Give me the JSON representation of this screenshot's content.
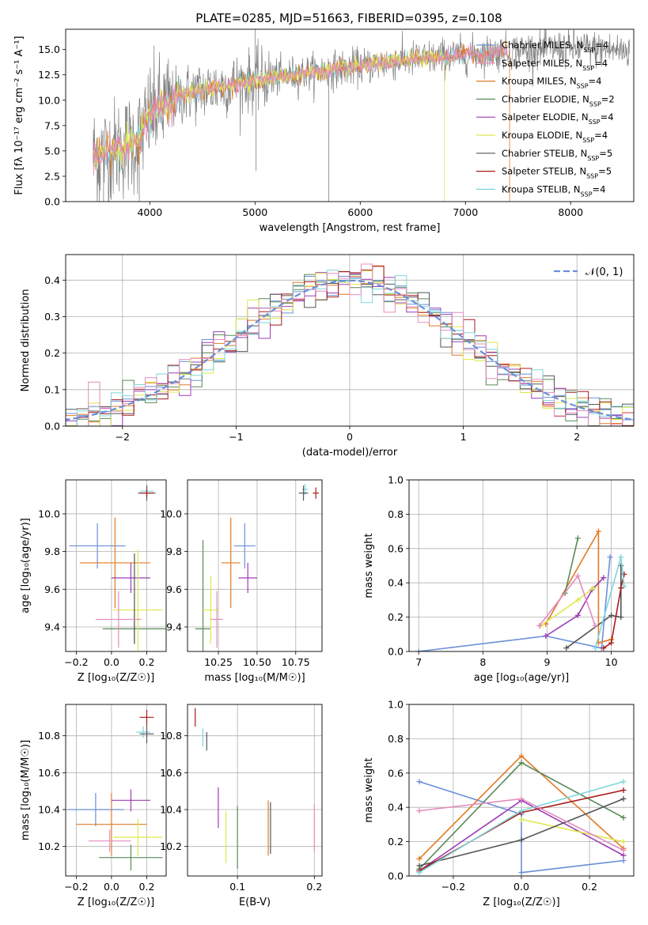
{
  "figure_title": "PLATE=0285, MJD=51663, FIBERID=0395, z=0.108",
  "series_colors": [
    "#6a8fd8",
    "#e07b25",
    "#5a8a5a",
    "#9b3db5",
    "#dde84a",
    "#555555",
    "#a81c1c",
    "#7fd6dc",
    "#e38cbf"
  ],
  "chart_data": [
    {
      "id": "spectrum",
      "type": "line",
      "xlabel": "wavelength [Angstrom, rest frame]",
      "ylabel": "Flux [fλ 10⁻¹⁷ erg cm⁻² s⁻¹ A⁻¹]",
      "xlim": [
        3200,
        8600
      ],
      "ylim": [
        0,
        17
      ],
      "xticks": [
        "4000",
        "5000",
        "6000",
        "7000",
        "8000"
      ],
      "yticks": [
        "0.0",
        "2.5",
        "5.0",
        "7.5",
        "10.0",
        "12.5",
        "15.0"
      ],
      "grid": false,
      "legend_position": "top-right",
      "data_points": [
        [
          3500,
          4.6
        ],
        [
          3600,
          4.9
        ],
        [
          3700,
          5.2
        ],
        [
          3800,
          5.6
        ],
        [
          3900,
          6.2
        ],
        [
          4000,
          8.6
        ],
        [
          4100,
          9.3
        ],
        [
          4200,
          9.9
        ],
        [
          4300,
          10.5
        ],
        [
          4500,
          11.0
        ],
        [
          4700,
          11.4
        ],
        [
          4900,
          11.8
        ],
        [
          5100,
          12.1
        ],
        [
          5300,
          12.4
        ],
        [
          5500,
          12.7
        ],
        [
          5700,
          13.0
        ],
        [
          5900,
          13.2
        ],
        [
          6100,
          13.5
        ],
        [
          6300,
          13.8
        ],
        [
          6500,
          14.0
        ],
        [
          6700,
          14.2
        ],
        [
          6900,
          14.4
        ],
        [
          7100,
          14.6
        ],
        [
          7300,
          14.7
        ],
        [
          7500,
          14.9
        ],
        [
          7700,
          15.0
        ],
        [
          7900,
          15.1
        ],
        [
          8100,
          15.1
        ],
        [
          8300,
          15.0
        ],
        [
          8500,
          14.9
        ]
      ],
      "legend": [
        {
          "label": "Chabrier MILES, N_SSP=4",
          "color": "#6a8fd8"
        },
        {
          "label": "Salpeter MILES, N_SSP=4",
          "color": "#e38cbf"
        },
        {
          "label": "Kroupa MILES, N_SSP=4",
          "color": "#e07b25"
        },
        {
          "label": "Chabrier ELODIE, N_SSP=2",
          "color": "#5a8a5a"
        },
        {
          "label": "Salpeter ELODIE, N_SSP=4",
          "color": "#9b3db5"
        },
        {
          "label": "Kroupa ELODIE, N_SSP=4",
          "color": "#dde84a"
        },
        {
          "label": "Chabrier STELIB, N_SSP=5",
          "color": "#555555"
        },
        {
          "label": "Salpeter STELIB, N_SSP=5",
          "color": "#a81c1c"
        },
        {
          "label": "Kroupa STELIB, N_SSP=4",
          "color": "#7fd6dc"
        }
      ]
    },
    {
      "id": "residuals",
      "type": "line",
      "xlabel": "(data-model)/error",
      "ylabel": "Normed distribution",
      "xlim": [
        -2.5,
        2.5
      ],
      "ylim": [
        0,
        0.47
      ],
      "xticks": [
        "−2",
        "−1",
        "0",
        "1",
        "2"
      ],
      "yticks": [
        "0.0",
        "0.1",
        "0.2",
        "0.3",
        "0.4"
      ],
      "grid": true,
      "legend_position": "top-right",
      "legend": [
        {
          "label": "𝒩(0, 1)",
          "color": "#6a8fd8",
          "style": "dashed"
        }
      ],
      "gaussian": {
        "mean": 0,
        "sigma": 1
      },
      "histogram_bin_width": 0.1
    },
    {
      "id": "age_vs_Z",
      "type": "scatter",
      "xlabel": "Z [log₁₀(Z/Z☉)]",
      "ylabel": "age  [log₁₀(age/yr)]",
      "xlim": [
        -0.26,
        0.31
      ],
      "ylim": [
        9.27,
        10.18
      ],
      "xticks": [
        {
          "v": -0.2,
          "t": "−0.2"
        },
        {
          "v": 0.0,
          "t": "0.0"
        },
        {
          "v": 0.2,
          "t": "0.2"
        }
      ],
      "yticks": [
        {
          "v": 9.4,
          "t": "9.4"
        },
        {
          "v": 9.6,
          "t": "9.6"
        },
        {
          "v": 9.8,
          "t": "9.8"
        },
        {
          "v": 10.0,
          "t": "10.0"
        }
      ],
      "grid": true,
      "points": [
        {
          "x": -0.08,
          "y": 9.83,
          "xerr": 0.16,
          "yerr": 0.12,
          "color": "#6a8fd8"
        },
        {
          "x": 0.02,
          "y": 9.74,
          "xerr": 0.2,
          "yerr": 0.24,
          "color": "#e07b25"
        },
        {
          "x": 0.13,
          "y": 9.39,
          "xerr": 0.18,
          "yerr": 0.08,
          "color": "#5a8a5a"
        },
        {
          "x": 0.11,
          "y": 9.66,
          "xerr": 0.11,
          "yerr": 0.08,
          "color": "#9b3db5"
        },
        {
          "x": 0.15,
          "y": 9.49,
          "xerr": 0.14,
          "yerr": 0.32,
          "color": "#dde84a"
        },
        {
          "x": 0.13,
          "y": 9.55,
          "xerr": 0.0,
          "yerr": 0.24,
          "color": "#555555"
        },
        {
          "x": 0.04,
          "y": 9.44,
          "xerr": 0.13,
          "yerr": 0.15,
          "color": "#e38cbf"
        },
        {
          "x": 0.2,
          "y": 10.12,
          "xerr": 0.04,
          "yerr": 0.03,
          "color": "#7fd6dc"
        },
        {
          "x": 0.2,
          "y": 10.11,
          "xerr": 0.05,
          "yerr": 0.04,
          "color": "#555555"
        },
        {
          "x": 0.2,
          "y": 10.11,
          "xerr": 0.04,
          "yerr": 0.02,
          "color": "#a81c1c"
        }
      ]
    },
    {
      "id": "age_vs_mass",
      "type": "scatter",
      "xlabel": "mass [log₁₀(M/M☉)]",
      "ylabel": "",
      "xlim": [
        10.05,
        10.92
      ],
      "ylim": [
        9.27,
        10.18
      ],
      "xticks": [
        {
          "v": 10.25,
          "t": "10.25"
        },
        {
          "v": 10.5,
          "t": "10.50"
        },
        {
          "v": 10.75,
          "t": "10.75"
        }
      ],
      "yticks": [
        {
          "v": 9.4,
          "t": "9.4"
        },
        {
          "v": 9.6,
          "t": "9.6"
        },
        {
          "v": 9.8,
          "t": "9.8"
        },
        {
          "v": 10.0,
          "t": "10.0"
        }
      ],
      "grid": true,
      "points": [
        {
          "x": 10.42,
          "y": 9.83,
          "xerr": 0.07,
          "yerr": 0.12,
          "color": "#6a8fd8"
        },
        {
          "x": 10.33,
          "y": 9.74,
          "xerr": 0.06,
          "yerr": 0.24,
          "color": "#e07b25"
        },
        {
          "x": 10.15,
          "y": 9.39,
          "xerr": 0.05,
          "yerr": 0.47,
          "color": "#5a8a5a"
        },
        {
          "x": 10.44,
          "y": 9.66,
          "xerr": 0.06,
          "yerr": 0.08,
          "color": "#9b3db5"
        },
        {
          "x": 10.2,
          "y": 9.49,
          "xerr": 0.05,
          "yerr": 0.18,
          "color": "#dde84a"
        },
        {
          "x": 10.24,
          "y": 9.44,
          "xerr": 0.04,
          "yerr": 0.15,
          "color": "#e38cbf"
        },
        {
          "x": 10.81,
          "y": 10.13,
          "xerr": 0.02,
          "yerr": 0.03,
          "color": "#7fd6dc"
        },
        {
          "x": 10.8,
          "y": 10.11,
          "xerr": 0.03,
          "yerr": 0.04,
          "color": "#555555"
        },
        {
          "x": 10.88,
          "y": 10.11,
          "xerr": 0.02,
          "yerr": 0.03,
          "color": "#a81c1c"
        }
      ]
    },
    {
      "id": "weight_vs_age",
      "type": "line",
      "xlabel": "age  [log₁₀(age/yr)]",
      "ylabel": "mass weight",
      "xlim": [
        6.85,
        10.35
      ],
      "ylim": [
        0,
        1
      ],
      "xticks": [
        {
          "v": 7,
          "t": "7"
        },
        {
          "v": 8,
          "t": "8"
        },
        {
          "v": 9,
          "t": "9"
        },
        {
          "v": 10,
          "t": "10"
        }
      ],
      "yticks": [
        {
          "v": 0,
          "t": "0.0"
        },
        {
          "v": 0.2,
          "t": "0.2"
        },
        {
          "v": 0.4,
          "t": "0.4"
        },
        {
          "v": 0.6,
          "t": "0.6"
        },
        {
          "v": 0.8,
          "t": "0.8"
        },
        {
          "v": 1.0,
          "t": "1.0"
        }
      ],
      "grid": true,
      "series": [
        {
          "color": "#6a8fd8",
          "points": [
            [
              7.0,
              0.0
            ],
            [
              8.98,
              0.09
            ],
            [
              9.85,
              0.02
            ],
            [
              9.98,
              0.55
            ]
          ]
        },
        {
          "color": "#e07b25",
          "points": [
            [
              8.98,
              0.16
            ],
            [
              9.8,
              0.7
            ],
            [
              9.8,
              0.05
            ],
            [
              10.0,
              0.07
            ]
          ]
        },
        {
          "color": "#5a8a5a",
          "points": [
            [
              9.28,
              0.34
            ],
            [
              9.48,
              0.66
            ]
          ]
        },
        {
          "color": "#9b3db5",
          "points": [
            [
              8.98,
              0.09
            ],
            [
              9.48,
              0.21
            ],
            [
              9.7,
              0.36
            ],
            [
              9.88,
              0.43
            ]
          ]
        },
        {
          "color": "#dde84a",
          "points": [
            [
              8.9,
              0.15
            ],
            [
              9.48,
              0.3
            ],
            [
              9.72,
              0.37
            ]
          ]
        },
        {
          "color": "#555555",
          "points": [
            [
              9.3,
              0.02
            ],
            [
              10.0,
              0.21
            ],
            [
              10.15,
              0.2
            ],
            [
              10.15,
              0.5
            ]
          ]
        },
        {
          "color": "#a81c1c",
          "points": [
            [
              9.88,
              0.02
            ],
            [
              10.0,
              0.05
            ],
            [
              10.15,
              0.37
            ],
            [
              10.2,
              0.45
            ]
          ]
        },
        {
          "color": "#7fd6dc",
          "points": [
            [
              9.75,
              0.02
            ],
            [
              10.15,
              0.55
            ],
            [
              10.2,
              0.38
            ]
          ]
        },
        {
          "color": "#e38cbf",
          "points": [
            [
              8.88,
              0.15
            ],
            [
              9.48,
              0.44
            ],
            [
              9.75,
              0.15
            ]
          ]
        }
      ]
    },
    {
      "id": "mass_vs_Z",
      "type": "scatter",
      "xlabel": "Z [log₁₀(Z/Z☉)]",
      "ylabel": "mass [log₁₀(M/M☉)]",
      "xlim": [
        -0.26,
        0.31
      ],
      "ylim": [
        10.04,
        10.97
      ],
      "xticks": [
        {
          "v": -0.2,
          "t": "−0.2"
        },
        {
          "v": 0.0,
          "t": "0.0"
        },
        {
          "v": 0.2,
          "t": "0.2"
        }
      ],
      "yticks": [
        {
          "v": 10.2,
          "t": "10.2"
        },
        {
          "v": 10.4,
          "t": "10.4"
        },
        {
          "v": 10.6,
          "t": "10.6"
        },
        {
          "v": 10.8,
          "t": "10.8"
        }
      ],
      "grid": true,
      "points": [
        {
          "x": -0.09,
          "y": 10.4,
          "xerr": 0.16,
          "yerr": 0.09,
          "color": "#6a8fd8"
        },
        {
          "x": 0.0,
          "y": 10.32,
          "xerr": 0.2,
          "yerr": 0.17,
          "color": "#e07b25"
        },
        {
          "x": 0.11,
          "y": 10.14,
          "xerr": 0.18,
          "yerr": 0.07,
          "color": "#5a8a5a"
        },
        {
          "x": 0.11,
          "y": 10.45,
          "xerr": 0.11,
          "yerr": 0.06,
          "color": "#9b3db5"
        },
        {
          "x": 0.15,
          "y": 10.25,
          "xerr": 0.14,
          "yerr": 0.1,
          "color": "#dde84a"
        },
        {
          "x": -0.01,
          "y": 10.23,
          "xerr": 0.12,
          "yerr": 0.06,
          "color": "#e38cbf"
        },
        {
          "x": 0.18,
          "y": 10.82,
          "xerr": 0.04,
          "yerr": 0.03,
          "color": "#7fd6dc"
        },
        {
          "x": 0.2,
          "y": 10.81,
          "xerr": 0.04,
          "yerr": 0.05,
          "color": "#555555"
        },
        {
          "x": 0.2,
          "y": 10.9,
          "xerr": 0.04,
          "yerr": 0.04,
          "color": "#a81c1c"
        }
      ]
    },
    {
      "id": "mass_vs_ebv",
      "type": "scatter",
      "xlabel": "E(B-V)",
      "ylabel": "",
      "xlim": [
        0.035,
        0.21
      ],
      "ylim": [
        10.04,
        10.97
      ],
      "xticks": [
        {
          "v": 0.1,
          "t": "0.1"
        },
        {
          "v": 0.2,
          "t": "0.2"
        }
      ],
      "yticks": [
        {
          "v": 10.2,
          "t": "10.2"
        },
        {
          "v": 10.4,
          "t": "10.4"
        },
        {
          "v": 10.6,
          "t": "10.6"
        },
        {
          "v": 10.8,
          "t": "10.8"
        }
      ],
      "grid": true,
      "points": [
        {
          "x": 0.045,
          "y": 10.9,
          "xerr": 0,
          "yerr": 0.05,
          "color": "#a81c1c"
        },
        {
          "x": 0.055,
          "y": 10.79,
          "xerr": 0,
          "yerr": 0.05,
          "color": "#7fd6dc"
        },
        {
          "x": 0.06,
          "y": 10.77,
          "xerr": 0,
          "yerr": 0.05,
          "color": "#555555"
        },
        {
          "x": 0.075,
          "y": 10.41,
          "xerr": 0,
          "yerr": 0.11,
          "color": "#9b3db5"
        },
        {
          "x": 0.085,
          "y": 10.25,
          "xerr": 0,
          "yerr": 0.14,
          "color": "#dde84a"
        },
        {
          "x": 0.1,
          "y": 10.25,
          "xerr": 0,
          "yerr": 0.17,
          "color": "#5a8a5a"
        },
        {
          "x": 0.14,
          "y": 10.3,
          "xerr": 0,
          "yerr": 0.15,
          "color": "#e07b25"
        },
        {
          "x": 0.143,
          "y": 10.3,
          "xerr": 0,
          "yerr": 0.14,
          "color": "#555555"
        },
        {
          "x": 0.2,
          "y": 10.3,
          "xerr": 0,
          "yerr": 0.13,
          "color": "#e38cbf"
        }
      ]
    },
    {
      "id": "weight_vs_Z",
      "type": "line",
      "xlabel": "Z [log₁₀(Z/Z☉)]",
      "ylabel": "mass weight",
      "xlim": [
        -0.33,
        0.33
      ],
      "ylim": [
        0,
        1
      ],
      "xticks": [
        {
          "v": -0.2,
          "t": "−0.2"
        },
        {
          "v": 0.0,
          "t": "0.0"
        },
        {
          "v": 0.2,
          "t": "0.2"
        }
      ],
      "yticks": [
        {
          "v": 0,
          "t": "0.0"
        },
        {
          "v": 0.2,
          "t": "0.2"
        },
        {
          "v": 0.4,
          "t": "0.4"
        },
        {
          "v": 0.6,
          "t": "0.6"
        },
        {
          "v": 0.8,
          "t": "0.8"
        },
        {
          "v": 1.0,
          "t": "1.0"
        }
      ],
      "grid": true,
      "series": [
        {
          "color": "#6a8fd8",
          "points": [
            [
              -0.3,
              0.55
            ],
            [
              0.0,
              0.36
            ],
            [
              0.0,
              0.02
            ],
            [
              0.3,
              0.09
            ]
          ]
        },
        {
          "color": "#e07b25",
          "points": [
            [
              -0.3,
              0.1
            ],
            [
              0.0,
              0.7
            ],
            [
              0.3,
              0.16
            ]
          ]
        },
        {
          "color": "#5a8a5a",
          "points": [
            [
              -0.3,
              0.04
            ],
            [
              0.0,
              0.66
            ],
            [
              0.3,
              0.34
            ]
          ]
        },
        {
          "color": "#9b3db5",
          "points": [
            [
              -0.3,
              0.03
            ],
            [
              0.0,
              0.44
            ],
            [
              0.3,
              0.12
            ]
          ]
        },
        {
          "color": "#dde84a",
          "points": [
            [
              0.0,
              0.33
            ],
            [
              0.3,
              0.2
            ]
          ]
        },
        {
          "color": "#555555",
          "points": [
            [
              -0.3,
              0.06
            ],
            [
              0.0,
              0.21
            ],
            [
              0.3,
              0.45
            ]
          ]
        },
        {
          "color": "#a81c1c",
          "points": [
            [
              -0.3,
              0.03
            ],
            [
              0.0,
              0.37
            ],
            [
              0.3,
              0.5
            ]
          ]
        },
        {
          "color": "#7fd6dc",
          "points": [
            [
              -0.3,
              0.02
            ],
            [
              0.0,
              0.38
            ],
            [
              0.3,
              0.55
            ]
          ]
        },
        {
          "color": "#e38cbf",
          "points": [
            [
              -0.3,
              0.38
            ],
            [
              0.0,
              0.45
            ],
            [
              0.3,
              0.15
            ]
          ]
        }
      ]
    }
  ]
}
